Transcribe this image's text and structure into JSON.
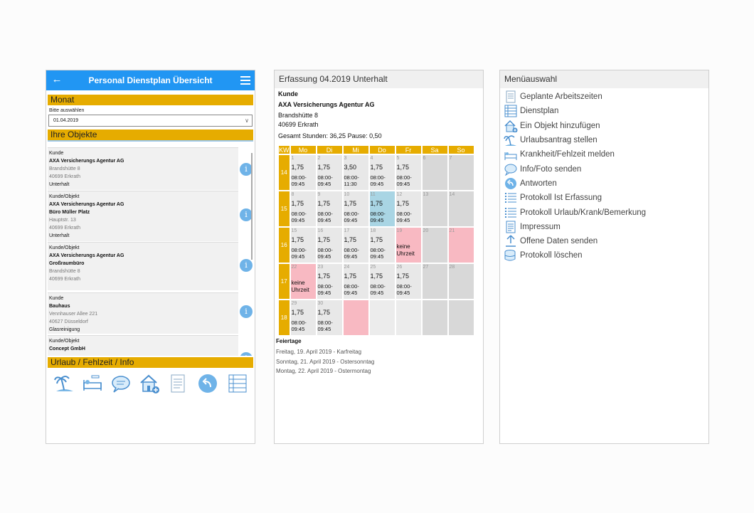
{
  "p1": {
    "title": "Personal Dienstplan Übersicht",
    "monat_label": "Monat",
    "hint": "Bitte auswählen",
    "month_value": "01.04.2019",
    "objekte_label": "Ihre Objekte",
    "cards": [
      {
        "type": "Kunde",
        "l1": "AXA Versicherungs Agentur AG",
        "l2": "",
        "a1": "Brandshütte 8",
        "a2": "40699 Erkrath",
        "svc": "Unterhalt"
      },
      {
        "type": "Kunde/Objekt",
        "l1": "AXA Versicherungs Agentur AG",
        "l2": "Büro Müller Platz",
        "a1": "Hauptstr. 13",
        "a2": "40699 Erkrath",
        "svc": "Unterhalt"
      },
      {
        "type": "Kunde/Objekt",
        "l1": "AXA Versicherungs Agentur AG",
        "l2": "Großraumbüro",
        "a1": "Brandshütte 8",
        "a2": "40699 Erkrath",
        "svc": ""
      },
      {
        "type": "Kunde",
        "l1": "Bauhaus",
        "l2": "",
        "a1": "Vennhauser Allee 221",
        "a2": "40627 Düsseldorf",
        "svc": "Glasreinigung"
      },
      {
        "type": "Kunde/Objekt",
        "l1": "Concept GmbH",
        "l2": "",
        "a1": "",
        "a2": "",
        "svc": ""
      }
    ],
    "urlaub_label": "Urlaub / Fehlzeit / Info",
    "info_glyph": "i"
  },
  "p2": {
    "header": "Erfassung 04.2019 Unterhalt",
    "kunde_label": "Kunde",
    "kunde_name": "AXA Versicherungs Agentur AG",
    "street": "Brandshütte 8",
    "city": "40699 Erkrath",
    "summary": "Gesamt Stunden: 36,25 Pause: 0,50",
    "days": [
      "KW",
      "Mo",
      "Di",
      "Mi",
      "Do",
      "Fr",
      "Sa",
      "So"
    ],
    "weeks": [
      {
        "kw": "14",
        "cells": [
          {
            "d": "1",
            "h": "1,75",
            "t1": "08:00-",
            "t2": "09:45"
          },
          {
            "d": "2",
            "h": "1,75",
            "t1": "08:00-",
            "t2": "09:45"
          },
          {
            "d": "3",
            "h": "3,50",
            "t1": "08:00-",
            "t2": "11:30"
          },
          {
            "d": "4",
            "h": "1,75",
            "t1": "08:00-",
            "t2": "09:45"
          },
          {
            "d": "5",
            "h": "1,75",
            "t1": "08:00-",
            "t2": "09:45"
          },
          {
            "d": "6",
            "c": "we"
          },
          {
            "d": "7",
            "c": "we"
          }
        ]
      },
      {
        "kw": "15",
        "cells": [
          {
            "d": "8",
            "h": "1,75",
            "t1": "08:00-",
            "t2": "09:45"
          },
          {
            "d": "9",
            "h": "1,75",
            "t1": "08:00-",
            "t2": "09:45"
          },
          {
            "d": "10",
            "h": "1,75",
            "t1": "08:00-",
            "t2": "09:45"
          },
          {
            "d": "11",
            "h": "1,75",
            "t1": "08:00-",
            "t2": "09:45",
            "c": "blue"
          },
          {
            "d": "12",
            "h": "1,75",
            "t1": "08:00-",
            "t2": "09:45"
          },
          {
            "d": "13",
            "c": "we"
          },
          {
            "d": "14",
            "c": "we"
          }
        ]
      },
      {
        "kw": "16",
        "cells": [
          {
            "d": "15",
            "h": "1,75",
            "t1": "08:00-",
            "t2": "09:45"
          },
          {
            "d": "16",
            "h": "1,75",
            "t1": "08:00-",
            "t2": "09:45"
          },
          {
            "d": "17",
            "h": "1,75",
            "t1": "08:00-",
            "t2": "09:45"
          },
          {
            "d": "18",
            "h": "1,75",
            "t1": "08:00-",
            "t2": "09:45"
          },
          {
            "d": "19",
            "c": "pink",
            "k1": "keine",
            "k2": "Uhrzeit"
          },
          {
            "d": "20",
            "c": "we"
          },
          {
            "d": "21",
            "c": "pink"
          }
        ]
      },
      {
        "kw": "17",
        "cells": [
          {
            "d": "22",
            "c": "pink",
            "k1": "keine",
            "k2": "Uhrzeit"
          },
          {
            "d": "23",
            "h": "1,75",
            "t1": "08:00-",
            "t2": "09:45"
          },
          {
            "d": "24",
            "h": "1,75",
            "t1": "08:00-",
            "t2": "09:45"
          },
          {
            "d": "25",
            "h": "1,75",
            "t1": "08:00-",
            "t2": "09:45"
          },
          {
            "d": "26",
            "h": "1,75",
            "t1": "08:00-",
            "t2": "09:45"
          },
          {
            "d": "27",
            "c": "we"
          },
          {
            "d": "28",
            "c": "we"
          }
        ]
      },
      {
        "kw": "18",
        "cells": [
          {
            "d": "29",
            "h": "1,75",
            "t1": "08:00-",
            "t2": "09:45"
          },
          {
            "d": "30",
            "h": "1,75",
            "t1": "08:00-",
            "t2": "09:45"
          },
          {
            "d": "",
            "c": "pink"
          },
          {
            "d": "",
            "c": "empty"
          },
          {
            "d": "",
            "c": "empty"
          },
          {
            "d": "",
            "c": "we"
          },
          {
            "d": "",
            "c": "we"
          }
        ]
      }
    ],
    "feiertage_label": "Feiertage",
    "feiertage": [
      "Freitag, 19. April 2019 - Karfreitag",
      "Sonntag, 21. April 2019 - Ostersonntag",
      "Montag, 22. April 2019 - Ostermontag"
    ]
  },
  "p3": {
    "header": "Menüauswahl",
    "items": [
      {
        "label": "Geplante Arbeitszeiten",
        "icon": "document-icon"
      },
      {
        "label": "Dienstplan",
        "icon": "schedule-list-icon"
      },
      {
        "label": "Ein Objekt hinzufügen",
        "icon": "house-add-icon"
      },
      {
        "label": "Urlaubsantrag stellen",
        "icon": "beach-icon"
      },
      {
        "label": "Krankheit/Fehlzeit melden",
        "icon": "sickbed-icon"
      },
      {
        "label": "Info/Foto senden",
        "icon": "chat-bubble-icon"
      },
      {
        "label": "Antworten",
        "icon": "reply-icon"
      },
      {
        "label": "Protokoll Ist Erfassung",
        "icon": "list-icon"
      },
      {
        "label": "Protokoll Urlaub/Krank/Bemerkung",
        "icon": "list-icon"
      },
      {
        "label": "Impressum",
        "icon": "document-text-icon"
      },
      {
        "label": "Offene Daten senden",
        "icon": "upload-arrow-icon"
      },
      {
        "label": "Protokoll löschen",
        "icon": "database-delete-icon"
      }
    ]
  },
  "colors": {
    "accent": "#e6ac00",
    "appbar": "#2196f3",
    "info": "#6fb3e8",
    "pink": "#f8b9c2",
    "blue": "#a9d5e4"
  }
}
